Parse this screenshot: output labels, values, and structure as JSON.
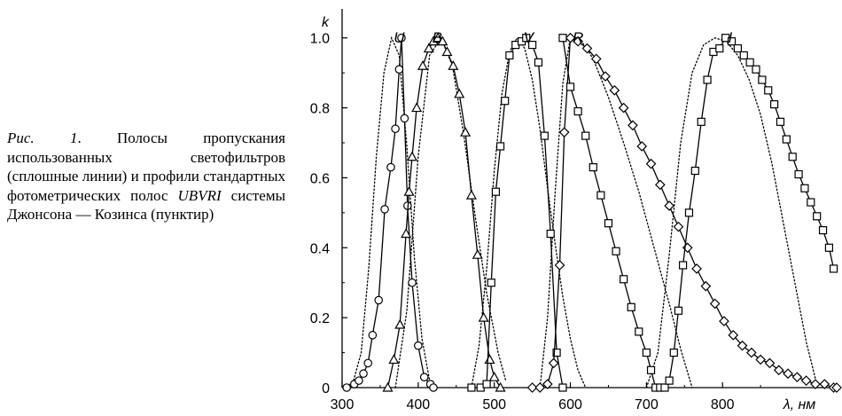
{
  "caption": {
    "fig_label": "Рис. 1",
    "text_1": ". Полосы пропускания использованных светофильтров (сплошные линии) и профили стандартных фотометрических полос ",
    "bands_word": "UBVRI",
    "text_2": " системы Джонсона — Козинса (пунктир)"
  },
  "chart_data": {
    "type": "line",
    "ylabel": "k",
    "xlabel": "λ, нм",
    "xlim": [
      300,
      950
    ],
    "ylim": [
      0,
      1.05
    ],
    "x_ticks": [
      300,
      400,
      500,
      600,
      700,
      800
    ],
    "y_ticks": [
      0,
      0.2,
      0.4,
      0.6,
      0.8,
      1.0
    ],
    "y_tick_labels": [
      "0",
      "0.2",
      "0.4",
      "0.6",
      "0.8",
      "1.0"
    ],
    "band_labels": [
      {
        "text": "U",
        "x": 375
      },
      {
        "text": "B",
        "x": 425
      },
      {
        "text": "V",
        "x": 545
      },
      {
        "text": "R",
        "x": 610
      },
      {
        "text": "I",
        "x": 810
      }
    ],
    "series": [
      {
        "band": "U",
        "style": "solid",
        "marker": "circle",
        "x": [
          306,
          316,
          322,
          328,
          334,
          340,
          348,
          356,
          364,
          370,
          375,
          378,
          382,
          386,
          392,
          400,
          408,
          416,
          420
        ],
        "y": [
          0.0,
          0.01,
          0.02,
          0.04,
          0.07,
          0.15,
          0.25,
          0.51,
          0.63,
          0.74,
          0.91,
          1.0,
          0.77,
          0.52,
          0.3,
          0.12,
          0.03,
          0.01,
          0.0
        ]
      },
      {
        "band": "B",
        "style": "solid",
        "marker": "triangle",
        "x": [
          360,
          368,
          376,
          384,
          388,
          392,
          398,
          406,
          414,
          420,
          426,
          432,
          438,
          446,
          454,
          462,
          470,
          478,
          486,
          494,
          500,
          508
        ],
        "y": [
          0.0,
          0.08,
          0.18,
          0.44,
          0.56,
          0.66,
          0.8,
          0.92,
          0.97,
          0.99,
          1.0,
          0.99,
          0.96,
          0.92,
          0.84,
          0.73,
          0.55,
          0.38,
          0.2,
          0.08,
          0.03,
          0.0
        ]
      },
      {
        "band": "V",
        "style": "solid",
        "marker": "square",
        "x": [
          470,
          482,
          490,
          496,
          502,
          508,
          514,
          520,
          528,
          536,
          542,
          550,
          558,
          566,
          574,
          582,
          590
        ],
        "y": [
          0.0,
          0.0,
          0.01,
          0.3,
          0.56,
          0.69,
          0.82,
          0.95,
          0.98,
          0.99,
          1.0,
          0.98,
          0.93,
          0.72,
          0.44,
          0.1,
          0.0
        ]
      },
      {
        "band": "R",
        "style": "solid",
        "marker": "diamond",
        "x": [
          550,
          560,
          570,
          578,
          586,
          592,
          600,
          610,
          622,
          634,
          646,
          658,
          670,
          682,
          694,
          706,
          718,
          730,
          742,
          754,
          766,
          778,
          790,
          802,
          814,
          826,
          838,
          850,
          862,
          874,
          886,
          898,
          910,
          922,
          934,
          946,
          950
        ],
        "y": [
          0.0,
          0.0,
          0.01,
          0.07,
          0.35,
          0.73,
          1.0,
          0.99,
          0.97,
          0.94,
          0.89,
          0.85,
          0.8,
          0.75,
          0.69,
          0.64,
          0.58,
          0.52,
          0.46,
          0.4,
          0.34,
          0.29,
          0.24,
          0.19,
          0.15,
          0.12,
          0.1,
          0.08,
          0.07,
          0.05,
          0.04,
          0.03,
          0.02,
          0.01,
          0.01,
          0.0,
          0.0
        ]
      },
      {
        "band": "I",
        "style": "solid",
        "marker": "square",
        "x": [
          590,
          600,
          610,
          620,
          630,
          640,
          650,
          660,
          670,
          680,
          690,
          700,
          706,
          712,
          718,
          724,
          730,
          736,
          742,
          748,
          756,
          764,
          772,
          780,
          788,
          796,
          804,
          812,
          820,
          828,
          836,
          844,
          852,
          860,
          868,
          876,
          884,
          892,
          900,
          908,
          916,
          924,
          932,
          940,
          946
        ],
        "y": [
          1.0,
          0.86,
          0.79,
          0.72,
          0.63,
          0.55,
          0.47,
          0.39,
          0.31,
          0.23,
          0.16,
          0.1,
          0.05,
          0.0,
          0.0,
          0.0,
          0.02,
          0.1,
          0.22,
          0.35,
          0.5,
          0.62,
          0.76,
          0.88,
          0.96,
          0.97,
          1.0,
          0.99,
          0.97,
          0.95,
          0.93,
          0.91,
          0.88,
          0.85,
          0.81,
          0.76,
          0.71,
          0.66,
          0.61,
          0.57,
          0.53,
          0.49,
          0.45,
          0.4,
          0.34
        ]
      },
      {
        "band": "U",
        "style": "dotted",
        "x": [
          305,
          315,
          325,
          335,
          345,
          355,
          365,
          375,
          385,
          395,
          405,
          415
        ],
        "y": [
          0.0,
          0.02,
          0.1,
          0.34,
          0.66,
          0.9,
          1.0,
          0.95,
          0.69,
          0.37,
          0.14,
          0.02
        ]
      },
      {
        "band": "B",
        "style": "dotted",
        "x": [
          370,
          385,
          400,
          415,
          430,
          445,
          460,
          475,
          490,
          505,
          515
        ],
        "y": [
          0.0,
          0.22,
          0.66,
          0.95,
          1.0,
          0.92,
          0.72,
          0.49,
          0.27,
          0.1,
          0.02
        ]
      },
      {
        "band": "V",
        "style": "dotted",
        "x": [
          470,
          480,
          490,
          500,
          510,
          520,
          530,
          540,
          550,
          560,
          570,
          580,
          590,
          600,
          610,
          620
        ],
        "y": [
          0.0,
          0.12,
          0.34,
          0.62,
          0.84,
          0.96,
          1.0,
          0.97,
          0.88,
          0.74,
          0.57,
          0.41,
          0.26,
          0.14,
          0.05,
          0.0
        ]
      },
      {
        "band": "R",
        "style": "dotted",
        "x": [
          560,
          570,
          580,
          590,
          600,
          615,
          630,
          650,
          670,
          690,
          710,
          730,
          745,
          760
        ],
        "y": [
          0.0,
          0.2,
          0.56,
          0.87,
          1.0,
          0.99,
          0.94,
          0.83,
          0.7,
          0.56,
          0.4,
          0.24,
          0.11,
          0.0
        ]
      },
      {
        "band": "I",
        "style": "dotted",
        "x": [
          700,
          715,
          730,
          745,
          760,
          775,
          790,
          805,
          820,
          835,
          850,
          865,
          880,
          895,
          910,
          925
        ],
        "y": [
          0.0,
          0.1,
          0.38,
          0.7,
          0.9,
          0.98,
          1.0,
          0.99,
          0.95,
          0.88,
          0.78,
          0.64,
          0.47,
          0.3,
          0.13,
          0.0
        ]
      }
    ]
  }
}
